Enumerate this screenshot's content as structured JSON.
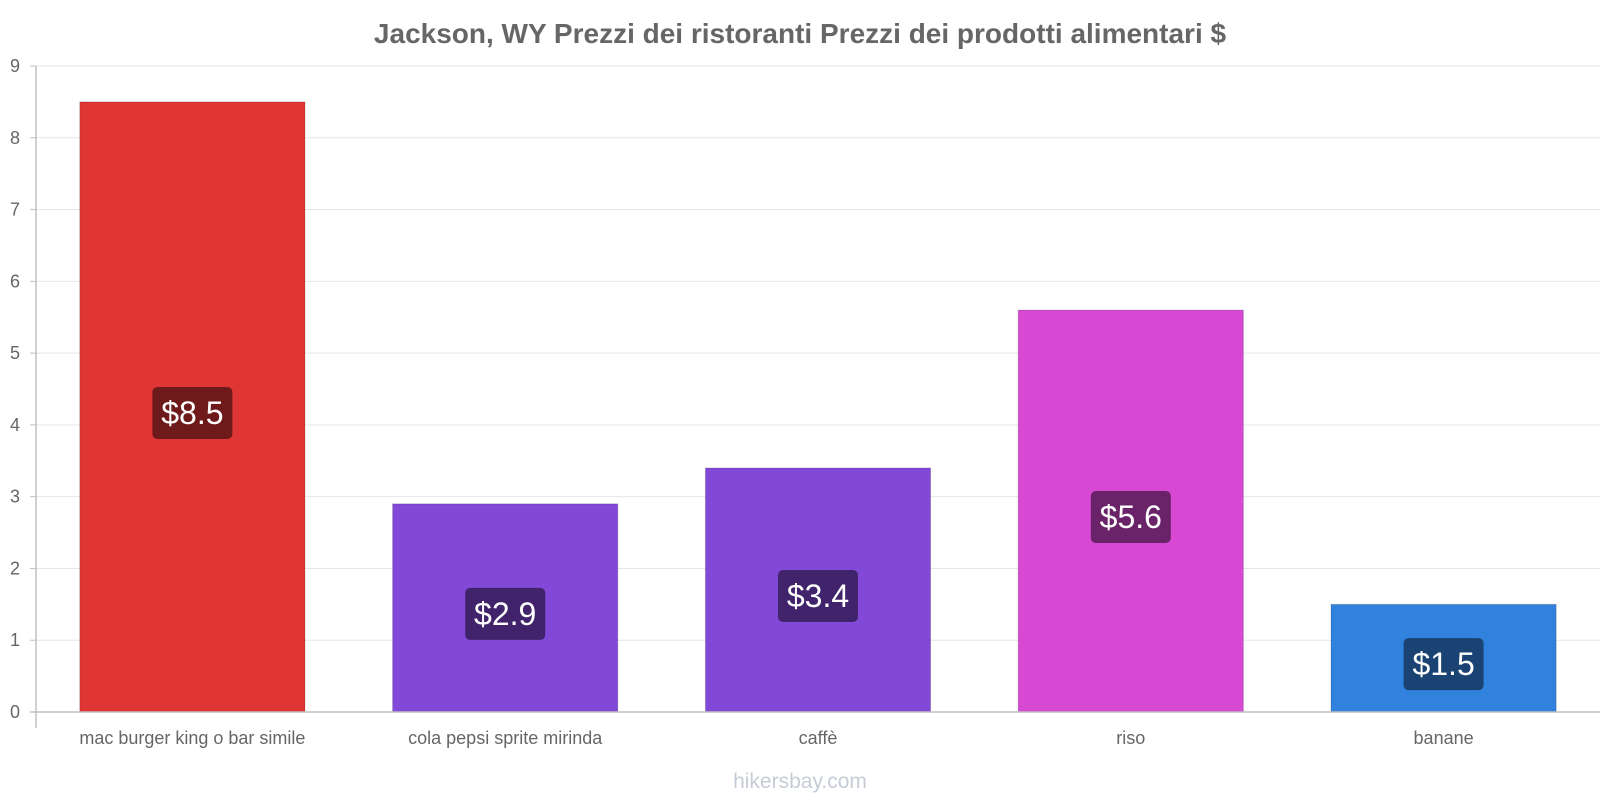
{
  "chart_data": {
    "type": "bar",
    "title": "Jackson, WY Prezzi dei ristoranti Prezzi dei prodotti alimentari $",
    "categories": [
      "mac burger king o bar simile",
      "cola pepsi sprite mirinda",
      "caffè",
      "riso",
      "banane"
    ],
    "values": [
      8.5,
      2.9,
      3.4,
      5.6,
      1.5
    ],
    "value_labels": [
      "$8.5",
      "$2.9",
      "$3.4",
      "$5.6",
      "$1.5"
    ],
    "bar_colors": [
      "#e03535",
      "#8249d8",
      "#8249d8",
      "#d748d3",
      "#3182dc"
    ],
    "label_bg_colors": [
      "#6e1a1a",
      "#40236b",
      "#40236b",
      "#6a2368",
      "#1a4272"
    ],
    "yticks": [
      "0",
      "1",
      "2",
      "3",
      "4",
      "5",
      "6",
      "7",
      "8",
      "9"
    ],
    "ylim": [
      0,
      9
    ],
    "grid": true,
    "xlabel": "",
    "ylabel": ""
  },
  "footer": {
    "credit": "hikersbay.com"
  }
}
